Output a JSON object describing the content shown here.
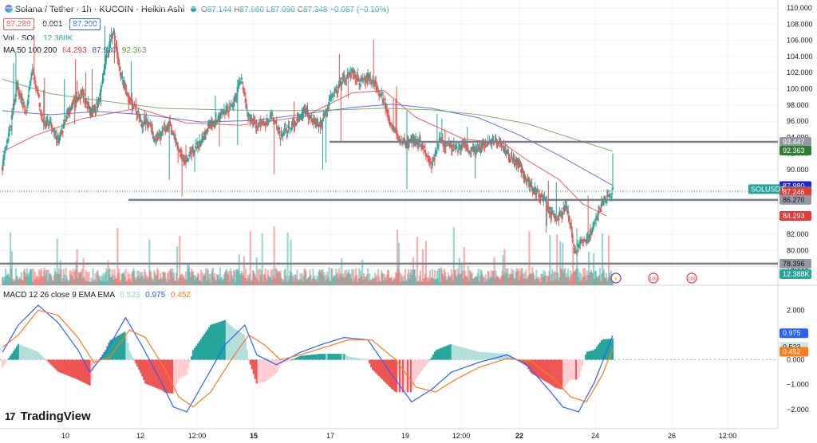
{
  "header": {
    "symbol_title": "Solana / Tether · 1h · KUCOIN · Heikin Ashi",
    "ohlc": [
      {
        "k": "O",
        "v": "87.144"
      },
      {
        "k": "H",
        "v": "87.860"
      },
      {
        "k": "L",
        "v": "87.090"
      },
      {
        "k": "C",
        "v": "87.348"
      }
    ],
    "change": "−0.087 (−0.10%)",
    "bid": "87.289",
    "spread": "0.001",
    "ask": "87.290",
    "vol_label": "Vol · SOL",
    "vol_value": "12.388K",
    "ma_label": "MA 50 100 200",
    "ma_values": [
      "84.293",
      "87.980",
      "92.363"
    ],
    "macd_label": "MACD 12 26 close 9 EMA EMA",
    "macd_values": [
      "0.523",
      "0.975",
      "0.452"
    ]
  },
  "colors": {
    "up": "#26a69a",
    "down": "#ef5350",
    "ma50": "#e53935",
    "ma100": "#3f51d8",
    "ma200": "#5b9b48",
    "macd": "#2962ff",
    "signal": "#ff7a1a"
  },
  "logo": "TradingView",
  "chart_data": {
    "type": "candlestick",
    "ylim": [
      77,
      110
    ],
    "y_ticks": [
      "110.000",
      "108.000",
      "106.000",
      "104.000",
      "102.000",
      "100.000",
      "98.000",
      "96.000",
      "94.000",
      "92.000",
      "90.000",
      "88.000",
      "86.000",
      "84.000",
      "82.000",
      "80.000",
      "78.000"
    ],
    "x_ticks": [
      "10",
      "12",
      "12:00",
      "15",
      "17",
      "19",
      "12:00",
      "22",
      "24",
      "26",
      "12:00"
    ],
    "horizontal_lines": [
      93.447,
      86.27,
      78.396
    ],
    "price_tags": [
      {
        "label": "93.447",
        "value": 93.447,
        "bg": "#9598a1",
        "fg": "#ffffff"
      },
      {
        "label": "92.363",
        "value": 92.363,
        "bg": "#2e7d32",
        "fg": "#ffffff"
      },
      {
        "label": "87.980",
        "value": 87.98,
        "bg": "#1e22d6",
        "fg": "#ffffff"
      },
      {
        "label": "87.348",
        "value": 87.348,
        "bg": "#26a69a",
        "fg": "#ffffff"
      },
      {
        "label": "21:07",
        "value": 86.45,
        "bg": "#26a69a",
        "fg": "#ffffff"
      },
      {
        "label": "87.246",
        "value": 87.246,
        "bg": "#e53935",
        "fg": "#ffffff"
      },
      {
        "label": "86.270",
        "value": 86.27,
        "bg": "#9598a1",
        "fg": "#131722"
      },
      {
        "label": "84.293",
        "value": 84.293,
        "bg": "#e53935",
        "fg": "#ffffff"
      },
      {
        "label": "78.396",
        "value": 78.396,
        "bg": "#9598a1",
        "fg": "#131722"
      },
      {
        "label": "12.388K",
        "value": 77.1,
        "bg": "#26a69a",
        "fg": "#ffffff"
      }
    ],
    "symbol_tag": "SOLUSDT",
    "close_anchors": [
      [
        0,
        90.5
      ],
      [
        10,
        95
      ],
      [
        18,
        100.5
      ],
      [
        25,
        99
      ],
      [
        30,
        97
      ],
      [
        38,
        102.5
      ],
      [
        45,
        99
      ],
      [
        52,
        95.5
      ],
      [
        60,
        96
      ],
      [
        70,
        93.5
      ],
      [
        85,
        97.5
      ],
      [
        100,
        99.5
      ],
      [
        112,
        97
      ],
      [
        122,
        98.5
      ],
      [
        132,
        104.5
      ],
      [
        140,
        107.5
      ],
      [
        148,
        102
      ],
      [
        158,
        99
      ],
      [
        168,
        97.5
      ],
      [
        175,
        95.8
      ],
      [
        183,
        96
      ],
      [
        192,
        93.8
      ],
      [
        200,
        94.2
      ],
      [
        210,
        95.6
      ],
      [
        220,
        93
      ],
      [
        230,
        90.6
      ],
      [
        240,
        92.6
      ],
      [
        250,
        93.2
      ],
      [
        260,
        95.5
      ],
      [
        270,
        96
      ],
      [
        280,
        97.3
      ],
      [
        290,
        97.8
      ],
      [
        300,
        101.3
      ],
      [
        310,
        96.5
      ],
      [
        320,
        95.5
      ],
      [
        330,
        95.9
      ],
      [
        340,
        96.8
      ],
      [
        350,
        94.2
      ],
      [
        360,
        95
      ],
      [
        370,
        95.6
      ],
      [
        380,
        97.7
      ],
      [
        390,
        96.2
      ],
      [
        400,
        95.6
      ],
      [
        410,
        98
      ],
      [
        420,
        99.8
      ],
      [
        430,
        101.2
      ],
      [
        440,
        102.3
      ],
      [
        450,
        100.8
      ],
      [
        460,
        101.6
      ],
      [
        470,
        100.3
      ],
      [
        480,
        98.5
      ],
      [
        490,
        95
      ],
      [
        500,
        93.8
      ],
      [
        510,
        93.3
      ],
      [
        520,
        93.7
      ],
      [
        530,
        92.9
      ],
      [
        540,
        90.5
      ],
      [
        550,
        93.5
      ],
      [
        560,
        93.2
      ],
      [
        570,
        92.5
      ],
      [
        580,
        93.2
      ],
      [
        590,
        92.3
      ],
      [
        600,
        92.6
      ],
      [
        610,
        93.1
      ],
      [
        620,
        93.6
      ],
      [
        630,
        92.8
      ],
      [
        640,
        91.2
      ],
      [
        650,
        90.6
      ],
      [
        660,
        88.5
      ],
      [
        670,
        87.5
      ],
      [
        680,
        86.7
      ],
      [
        690,
        84.6
      ],
      [
        700,
        84
      ],
      [
        710,
        85.7
      ],
      [
        720,
        80
      ],
      [
        730,
        81.2
      ],
      [
        740,
        81.9
      ],
      [
        750,
        84.7
      ],
      [
        760,
        86.7
      ],
      [
        768,
        87.35
      ]
    ],
    "ma_anchors": {
      "ma50": [
        [
          0,
          92.2
        ],
        [
          40,
          94.2
        ],
        [
          100,
          96.3
        ],
        [
          170,
          97.6
        ],
        [
          230,
          95.8
        ],
        [
          300,
          95.5
        ],
        [
          380,
          96.6
        ],
        [
          440,
          99.5
        ],
        [
          480,
          99.8
        ],
        [
          520,
          96.5
        ],
        [
          580,
          93.8
        ],
        [
          630,
          93.3
        ],
        [
          660,
          91.2
        ],
        [
          700,
          88.8
        ],
        [
          730,
          85.8
        ],
        [
          760,
          84.3
        ]
      ],
      "ma100": [
        [
          0,
          97.3
        ],
        [
          60,
          96.8
        ],
        [
          120,
          97.2
        ],
        [
          180,
          96.8
        ],
        [
          250,
          95.9
        ],
        [
          320,
          96.1
        ],
        [
          380,
          96.9
        ],
        [
          440,
          97.7
        ],
        [
          490,
          98.1
        ],
        [
          540,
          97.6
        ],
        [
          600,
          96.4
        ],
        [
          650,
          94.3
        ],
        [
          700,
          91.8
        ],
        [
          740,
          89.6
        ],
        [
          768,
          88.05
        ]
      ],
      "ma200": [
        [
          0,
          101.2
        ],
        [
          60,
          99.4
        ],
        [
          120,
          98.6
        ],
        [
          200,
          97.6
        ],
        [
          280,
          97.4
        ],
        [
          350,
          97.3
        ],
        [
          420,
          97.4
        ],
        [
          480,
          97.6
        ],
        [
          540,
          97.4
        ],
        [
          600,
          96.8
        ],
        [
          660,
          95.7
        ],
        [
          710,
          94.1
        ],
        [
          768,
          92.3
        ]
      ]
    },
    "macd": {
      "ylim": [
        -2.2,
        2.3
      ],
      "y_ticks": [
        "2.000",
        "1.000",
        "0.000",
        "−1.000",
        "−2.000"
      ],
      "macd_anchors": [
        [
          0,
          0.3
        ],
        [
          20,
          1.4
        ],
        [
          45,
          2.2
        ],
        [
          70,
          1.5
        ],
        [
          95,
          0.4
        ],
        [
          110,
          -0.5
        ],
        [
          130,
          0.3
        ],
        [
          155,
          1.7
        ],
        [
          175,
          0.6
        ],
        [
          200,
          -0.9
        ],
        [
          215,
          -1.9
        ],
        [
          232,
          -2.1
        ],
        [
          250,
          -1.1
        ],
        [
          280,
          0.6
        ],
        [
          305,
          1.4
        ],
        [
          320,
          0.2
        ],
        [
          345,
          -0.2
        ],
        [
          375,
          0.3
        ],
        [
          400,
          0.6
        ],
        [
          430,
          0.9
        ],
        [
          460,
          0.8
        ],
        [
          490,
          -0.6
        ],
        [
          515,
          -1.7
        ],
        [
          540,
          -1.2
        ],
        [
          565,
          -0.5
        ],
        [
          600,
          -0.1
        ],
        [
          635,
          0.2
        ],
        [
          660,
          -0.2
        ],
        [
          690,
          -1.3
        ],
        [
          705,
          -1.9
        ],
        [
          725,
          -2.1
        ],
        [
          745,
          -0.9
        ],
        [
          768,
          0.98
        ]
      ],
      "signal_anchors": [
        [
          0,
          0.5
        ],
        [
          20,
          1.0
        ],
        [
          45,
          2.0
        ],
        [
          70,
          1.8
        ],
        [
          95,
          0.9
        ],
        [
          115,
          -0.1
        ],
        [
          135,
          0.1
        ],
        [
          160,
          1.2
        ],
        [
          180,
          0.9
        ],
        [
          205,
          -0.4
        ],
        [
          222,
          -1.5
        ],
        [
          240,
          -1.9
        ],
        [
          262,
          -1.3
        ],
        [
          290,
          0.1
        ],
        [
          310,
          1.0
        ],
        [
          330,
          0.6
        ],
        [
          350,
          0.0
        ],
        [
          375,
          0.2
        ],
        [
          405,
          0.5
        ],
        [
          435,
          0.8
        ],
        [
          465,
          0.8
        ],
        [
          495,
          0.0
        ],
        [
          520,
          -1.1
        ],
        [
          545,
          -1.3
        ],
        [
          570,
          -0.8
        ],
        [
          600,
          -0.3
        ],
        [
          635,
          0.05
        ],
        [
          665,
          -0.05
        ],
        [
          695,
          -0.8
        ],
        [
          715,
          -1.5
        ],
        [
          735,
          -1.7
        ],
        [
          755,
          -0.6
        ],
        [
          768,
          0.45
        ]
      ]
    },
    "event_markers": [
      "⚡",
      "US",
      "US"
    ]
  }
}
